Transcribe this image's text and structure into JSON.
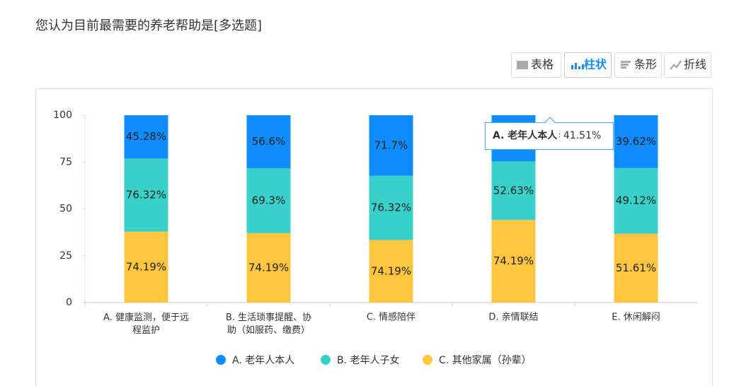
{
  "toolbar": [
    "表格",
    "柱状",
    "条形",
    "折线"
  ],
  "chart_data": {
    "type": "bar",
    "stack": "percent",
    "title": "您认为目前最需要的养老帮助是[多选题]",
    "categories": [
      "A. 健康监测，便于远程监护",
      "B. 生活琐事提醒、协助（如服药、缴费）",
      "C. 情感陪伴",
      "D. 亲情联结",
      "E. 休闲解闷"
    ],
    "series": [
      {
        "name": "A. 老年人本人",
        "color": "#0f8cff",
        "values": [
          45.28,
          56.6,
          71.7,
          41.51,
          39.62
        ],
        "value_labels": [
          "45.28%",
          "56.6%",
          "71.7%",
          "41.51%",
          "39.62%"
        ]
      },
      {
        "name": "B. 老年人子女",
        "color": "#38d0c9",
        "values": [
          76.32,
          69.3,
          76.32,
          52.63,
          49.12
        ],
        "value_labels": [
          "76.32%",
          "69.3%",
          "76.32%",
          "52.63%",
          "49.12%"
        ]
      },
      {
        "name": "C. 其他家属（孙辈）",
        "color": "#ffc53f",
        "values": [
          74.19,
          74.19,
          74.19,
          74.19,
          51.61
        ],
        "value_labels": [
          "74.19%",
          "74.19%",
          "74.19%",
          "74.19%",
          "51.61%"
        ]
      }
    ],
    "ylim": [
      0,
      100
    ],
    "yticks": [
      0,
      25,
      50,
      75,
      100
    ],
    "legend": "bottom"
  }
}
